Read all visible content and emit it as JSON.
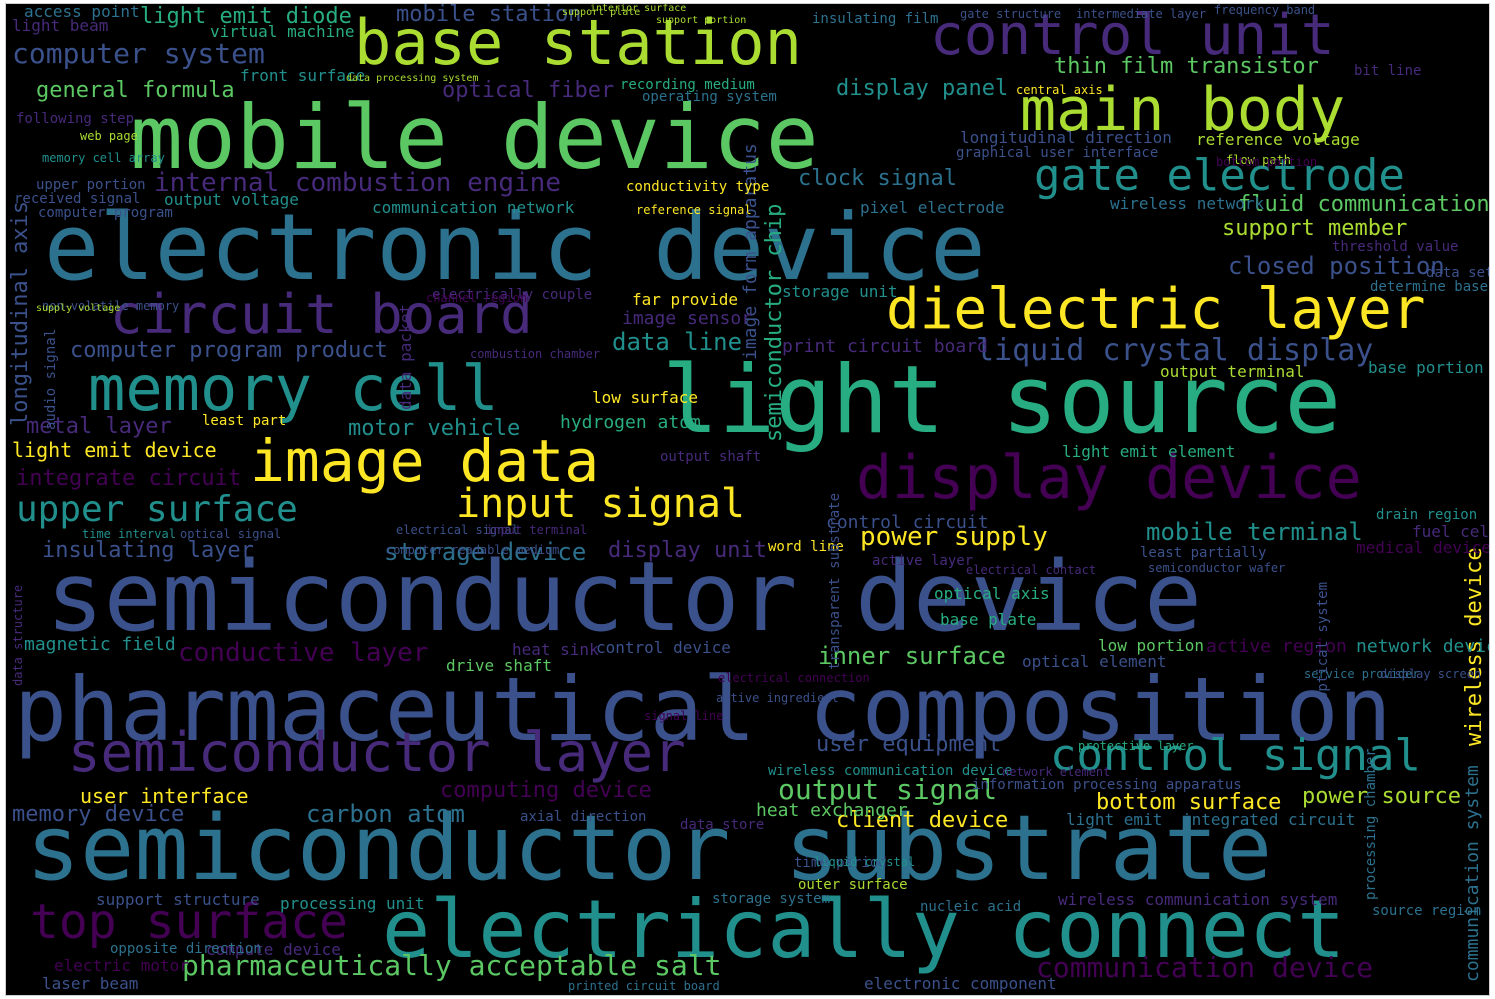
{
  "cloud": {
    "words": [
      "semiconductor device",
      "semiconductor substrate",
      "pharmaceutical composition",
      "electronic device",
      "light source",
      "mobile device",
      "electrically connect",
      "base station",
      "control unit",
      "main body",
      "gate electrode",
      "dielectric layer",
      "circuit board",
      "memory cell",
      "image data",
      "display device",
      "semiconductor layer",
      "control signal",
      "top surface",
      "input signal",
      "upper surface",
      "liquid crystal display",
      "pharmaceutically acceptable salt",
      "communication device",
      "power supply",
      "output signal",
      "inner surface",
      "closed position",
      "mobile terminal",
      "internal combustion engine",
      "thin film transistor",
      "computer system",
      "light emit diode",
      "bottom surface",
      "power source",
      "client device",
      "user interface",
      "memory device",
      "carbon atom",
      "storage device",
      "display unit",
      "insulating layer",
      "conductive layer",
      "computing device",
      "data line",
      "support member",
      "fluid communication",
      "clock signal",
      "general formula",
      "optical fiber",
      "display panel",
      "motor vehicle",
      "integrate circuit",
      "metal layer",
      "light emit device",
      "computer program product",
      "user equipment",
      "magnetic field",
      "mobile station",
      "access point",
      "virtual machine",
      "light beam",
      "front surface",
      "longitudinal direction",
      "longitudinal axis",
      "image form apparatus",
      "semiconductor chip",
      "wireless device",
      "communication system",
      "control circuit",
      "network device",
      "heat exchanger",
      "processing unit",
      "compute device",
      "electric motor",
      "laser beam",
      "support structure",
      "storage system",
      "nucleic acid",
      "electronic component",
      "wireless communication device",
      "active region",
      "optical element",
      "optical axis",
      "base plate",
      "drain region",
      "medical device",
      "fuel cell",
      "hydrogen atom",
      "low surface",
      "far provide",
      "image sensor",
      "light emit element",
      "control device",
      "heat sink",
      "drive shaft",
      "low portion",
      "output terminal",
      "base portion",
      "print circuit board",
      "storage unit",
      "light emit",
      "integrated circuit",
      "wireless communication system",
      "axial direction",
      "source region",
      "communication network",
      "output voltage",
      "reference voltage",
      "wireless network",
      "pixel electrode",
      "conductivity type",
      "recording medium",
      "operating system",
      "insulating film",
      "frequency band",
      "bit line",
      "central axis",
      "graphical user interface",
      "following step",
      "upper portion",
      "received signal",
      "web page",
      "memory cell array",
      "audio signal",
      "electrically couple",
      "threshold value",
      "data set",
      "determine base",
      "data packet",
      "least part",
      "time interval",
      "optical signal",
      "electrical signal",
      "input terminal",
      "word line",
      "active layer",
      "least partially",
      "semiconductor wafer",
      "output shaft",
      "data store",
      "printed circuit board",
      "time period",
      "outer surface",
      "liquid crystal",
      "network element",
      "information processing apparatus",
      "opposite direction",
      "reference signal",
      "computer program",
      "data structure",
      "gate structure",
      "intermediate layer",
      "support plate",
      "support portion",
      "interior surface",
      "data processing system",
      "channel region",
      "non-volatile memory",
      "supply voltage",
      "combustion chamber",
      "flow path",
      "bottom portion",
      "computer readable medium",
      "transparent substrate",
      "optical system",
      "service provider",
      "display screen",
      "electrical contact",
      "electrical connection",
      "active ingredient",
      "protective layer",
      "signal line",
      "processing chamber"
    ]
  }
}
